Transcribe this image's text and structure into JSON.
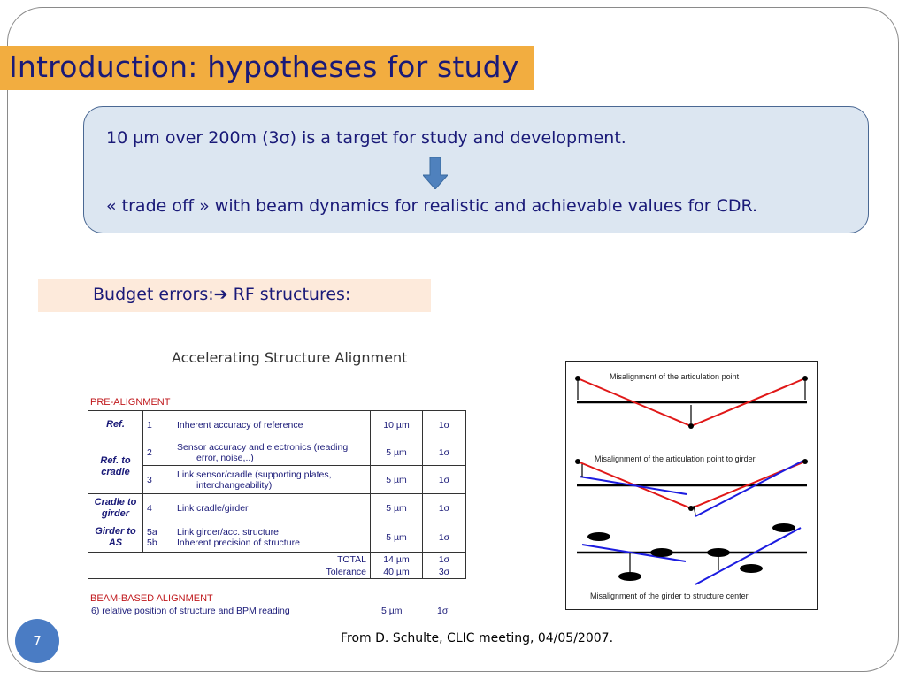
{
  "slide": {
    "title": "Introduction: hypotheses for study",
    "callout": {
      "line1": "10 µm over 200m (3σ) is a target for study and development.",
      "line2": "« trade off » with beam dynamics for realistic and achievable values for CDR."
    },
    "budget": "Budget errors:➔ RF structures:",
    "page_number": "7",
    "source": "From D. Schulte, CLIC meeting, 04/05/2007.",
    "colors": {
      "title_band": "#f2ad40",
      "title_text": "#1a1a78",
      "callout_bg": "#dce6f1",
      "callout_border": "#4a6893",
      "budget_bg": "#fdeadb",
      "page_circle": "#4a7cc4"
    }
  },
  "table": {
    "title": "Accelerating Structure Alignment",
    "pre_alignment_label": "PRE-ALIGNMENT",
    "rows": {
      "ref": {
        "group": "Ref.",
        "num": "1",
        "desc": "Inherent accuracy of reference",
        "value": "10 µm",
        "sigma": "1σ"
      },
      "ref_cradle_2": {
        "group": "Ref. to cradle",
        "num": "2",
        "desc_a": "Sensor accuracy and electronics (reading",
        "desc_b": "error, noise,..)",
        "value": "5 µm",
        "sigma": "1σ"
      },
      "ref_cradle_3": {
        "num": "3",
        "desc_a": "Link sensor/cradle (supporting plates,",
        "desc_b": "interchangeability)",
        "value": "5 µm",
        "sigma": "1σ"
      },
      "cradle_girder": {
        "group": "Cradle to girder",
        "num": "4",
        "desc": "Link cradle/girder",
        "value": "5 µm",
        "sigma": "1σ"
      },
      "girder_as": {
        "group": "Girder to AS",
        "num_a": "5a",
        "num_b": "5b",
        "desc_a": "Link girder/acc. structure",
        "desc_b": "Inherent precision of structure",
        "value": "5 µm",
        "sigma": "1σ"
      },
      "total": {
        "label": "TOTAL",
        "value": "14 µm",
        "sigma": "1σ"
      },
      "tolerance": {
        "label": "Tolerance",
        "value": "40 µm",
        "sigma": "3σ"
      }
    },
    "beam_based_label": "BEAM-BASED ALIGNMENT",
    "beam_based_row": {
      "desc": "6) relative position of structure and BPM reading",
      "value": "5 µm",
      "sigma": "1σ"
    }
  },
  "diagram": {
    "label1": "Misalignment of the articulation point",
    "label2": "Misalignment of the articulation point to girder",
    "label3": "Misalignment of the girder to structure center"
  }
}
